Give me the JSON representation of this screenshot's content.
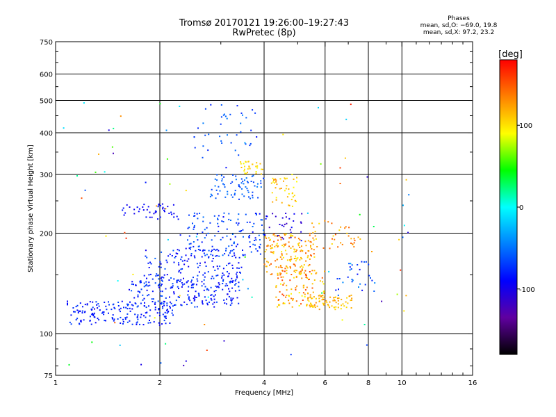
{
  "chart_data": {
    "type": "scatter",
    "title": "Tromsø 20170121 19:26:00–19:27:43",
    "subtitle": "RwPretec (8p)",
    "xlabel": "Frequency [MHz]",
    "ylabel": "Stationary phase Virtual Height [km]",
    "xscale": "log",
    "yscale": "log",
    "xlim": [
      1,
      16
    ],
    "ylim": [
      75,
      750
    ],
    "xticks": [
      1,
      2,
      4,
      6,
      8,
      10,
      16
    ],
    "xtick_labels": [
      "1",
      "2",
      "4",
      "6",
      "8",
      "10",
      "16"
    ],
    "xgrid": [
      2,
      4,
      6,
      8,
      10
    ],
    "yticks": [
      75,
      100,
      200,
      300,
      400,
      500,
      600,
      750
    ],
    "ytick_labels": [
      "75",
      "100",
      "200",
      "300",
      "400",
      "500",
      "600",
      "750"
    ],
    "ygrid": [
      100,
      200,
      300,
      400,
      500,
      600
    ],
    "phase_header": "Phases",
    "phase_stats": [
      "mean, sd,O: −69.0, 19.8",
      "mean, sd,X:  97.2, 23.2"
    ],
    "colorbar": {
      "label": "[deg]",
      "range": [
        -180,
        180
      ],
      "ticks": [
        100,
        0,
        -100
      ],
      "tick_labels": [
        "100",
        "0",
        "-100"
      ],
      "colors": [
        "#ff0000",
        "#ff8000",
        "#ffff00",
        "#00ff00",
        "#00ffff",
        "#0080ff",
        "#0000ff",
        "#6000a0",
        "#000000"
      ]
    },
    "clusters": [
      {
        "f": [
          1.08,
          2.2
        ],
        "h": [
          106,
          125
        ],
        "phase": [
          -95,
          -65
        ],
        "n": 180
      },
      {
        "f": [
          1.6,
          3.4
        ],
        "h": [
          120,
          145
        ],
        "phase": [
          -100,
          -60
        ],
        "n": 190
      },
      {
        "f": [
          1.8,
          3.5
        ],
        "h": [
          140,
          180
        ],
        "phase": [
          -100,
          -55
        ],
        "n": 160
      },
      {
        "f": [
          2.4,
          4.0
        ],
        "h": [
          170,
          230
        ],
        "phase": [
          -90,
          -50
        ],
        "n": 130
      },
      {
        "f": [
          1.55,
          2.3
        ],
        "h": [
          220,
          245
        ],
        "phase": [
          -100,
          -80
        ],
        "n": 45
      },
      {
        "f": [
          2.8,
          4.0
        ],
        "h": [
          250,
          300
        ],
        "phase": [
          -75,
          -45
        ],
        "n": 70
      },
      {
        "f": [
          2.5,
          3.8
        ],
        "h": [
          330,
          490
        ],
        "phase": [
          -80,
          -45
        ],
        "n": 40
      },
      {
        "f": [
          3.4,
          4.0
        ],
        "h": [
          300,
          330
        ],
        "phase": [
          85,
          115
        ],
        "n": 30
      },
      {
        "f": [
          4.0,
          5.6
        ],
        "h": [
          150,
          200
        ],
        "phase": [
          95,
          150
        ],
        "n": 170
      },
      {
        "f": [
          4.3,
          6.0
        ],
        "h": [
          120,
          155
        ],
        "phase": [
          90,
          160
        ],
        "n": 110
      },
      {
        "f": [
          4.2,
          5.0
        ],
        "h": [
          240,
          300
        ],
        "phase": [
          90,
          130
        ],
        "n": 45
      },
      {
        "f": [
          5.3,
          7.2
        ],
        "h": [
          118,
          130
        ],
        "phase": [
          100,
          130
        ],
        "n": 70
      },
      {
        "f": [
          5.5,
          7.6
        ],
        "h": [
          180,
          220
        ],
        "phase": [
          100,
          150
        ],
        "n": 40
      },
      {
        "f": [
          4.0,
          5.2
        ],
        "h": [
          190,
          230
        ],
        "phase": [
          -120,
          -80
        ],
        "n": 30
      },
      {
        "f": [
          6.3,
          8.5
        ],
        "h": [
          130,
          165
        ],
        "phase": [
          -90,
          -40
        ],
        "n": 30
      },
      {
        "f": [
          1.0,
          12.0
        ],
        "h": [
          80,
          500
        ],
        "phase": [
          -130,
          170
        ],
        "n": 90
      }
    ]
  }
}
